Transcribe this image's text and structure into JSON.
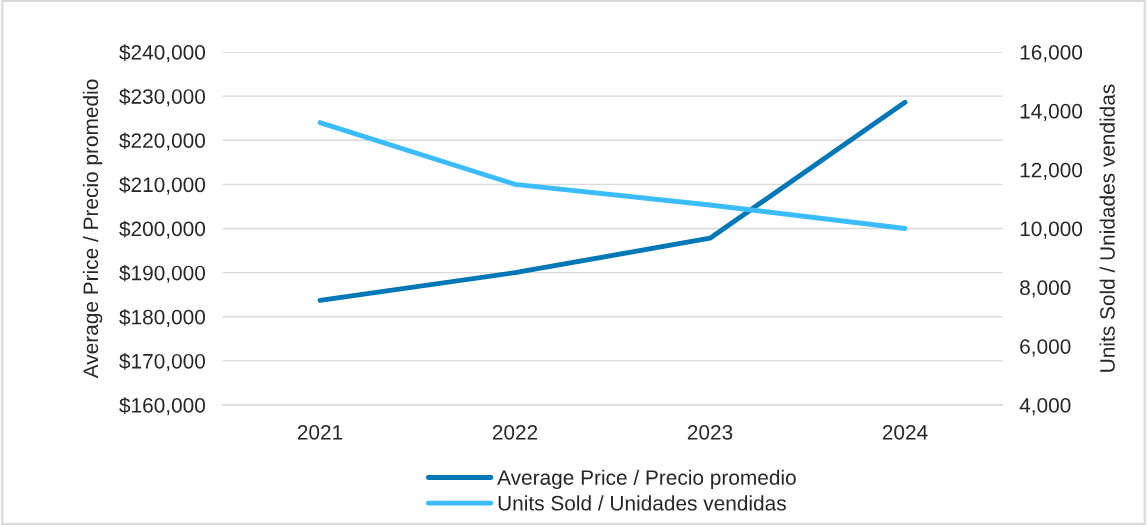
{
  "chart_data": {
    "type": "line",
    "categories": [
      "2021",
      "2022",
      "2023",
      "2024"
    ],
    "series": [
      {
        "name": "Average Price / Precio promedio",
        "color": "#0077b6",
        "values": [
          183700,
          190000,
          197800,
          228600
        ]
      },
      {
        "name": "Units Sold / Unidades vendidas",
        "color": "#3bbcff",
        "values": [
          13600,
          11500,
          10800,
          10000
        ],
        "axis": "y2"
      }
    ],
    "ylabel": "Average Price / Precio promedio",
    "y2label": "Units Sold / Unidades vendidas",
    "ylim": [
      160000,
      240000
    ],
    "yticks": [
      {
        "value": 160000,
        "label": "$160,000"
      },
      {
        "value": 170000,
        "label": "$170,000"
      },
      {
        "value": 180000,
        "label": "$180,000"
      },
      {
        "value": 190000,
        "label": "$190,000"
      },
      {
        "value": 200000,
        "label": "$200,000"
      },
      {
        "value": 210000,
        "label": "$210,000"
      },
      {
        "value": 220000,
        "label": "$220,000"
      },
      {
        "value": 230000,
        "label": "$230,000"
      },
      {
        "value": 240000,
        "label": "$240,000"
      }
    ],
    "y2lim": [
      4000,
      16000
    ],
    "y2ticks": [
      {
        "value": 4000,
        "label": "4,000"
      },
      {
        "value": 6000,
        "label": "6,000"
      },
      {
        "value": 8000,
        "label": "8,000"
      },
      {
        "value": 10000,
        "label": "10,000"
      },
      {
        "value": 12000,
        "label": "12,000"
      },
      {
        "value": 14000,
        "label": "14,000"
      },
      {
        "value": 16000,
        "label": "16,000"
      }
    ],
    "grid": "y",
    "legend": "bottom",
    "line_style": "solid",
    "marker": "none"
  }
}
